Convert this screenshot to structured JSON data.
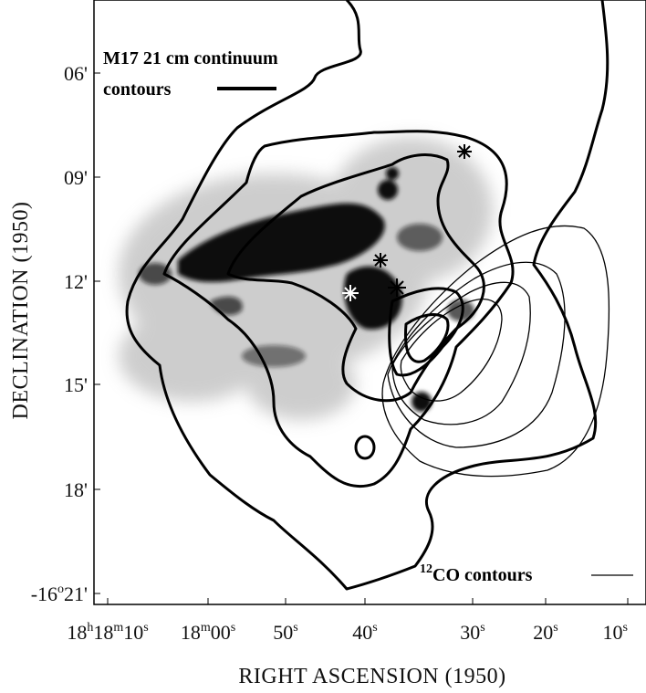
{
  "annotations": {
    "continuum_title": "M17 21 cm continuum",
    "continuum_legend": "contours",
    "co_legend": [
      "12",
      "CO contours"
    ]
  },
  "axes": {
    "y_title": "DECLINATION (1950)",
    "x_title": "RIGHT ASCENSION (1950)",
    "y_ticks": [
      "06'",
      "09'",
      "12'",
      "15'",
      "18'",
      [
        "-16",
        "o",
        "21'"
      ]
    ],
    "x_ticks": [
      [
        "18",
        "h",
        "18",
        "m",
        "10",
        "s"
      ],
      [
        "18",
        "m",
        "00",
        "s"
      ],
      [
        "50",
        "s"
      ],
      [
        "40",
        "s"
      ],
      [
        "30",
        "s"
      ],
      [
        "20",
        "s"
      ],
      [
        "10",
        "s"
      ]
    ]
  }
}
